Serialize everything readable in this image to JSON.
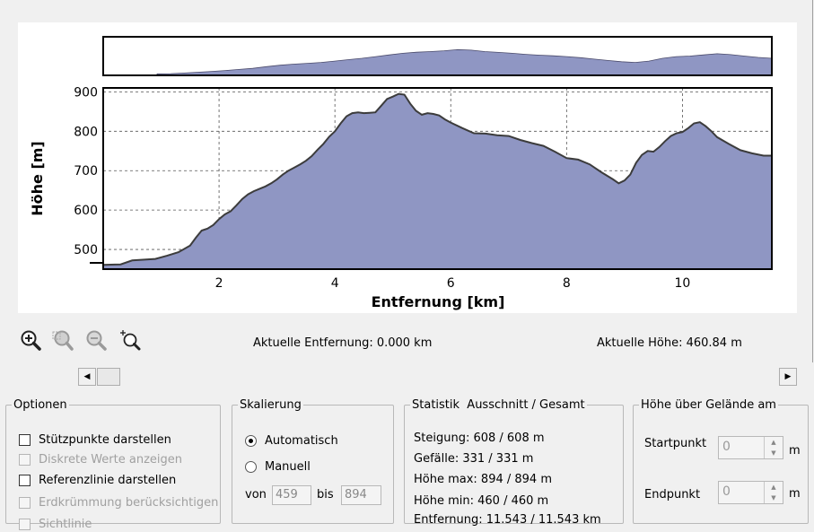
{
  "chart_data": {
    "type": "area",
    "xlabel": "Entfernung [km]",
    "ylabel": "Höhe [m]",
    "xlim": [
      0,
      11.543
    ],
    "ylim": [
      450,
      910
    ],
    "x_ticks": [
      "2",
      "4",
      "6",
      "8",
      "10"
    ],
    "y_ticks": [
      "500",
      "600",
      "700",
      "800",
      "900"
    ],
    "x_tick_values": [
      2,
      4,
      6,
      8,
      10
    ],
    "y_tick_values": [
      500,
      600,
      700,
      800,
      900
    ],
    "grid": true,
    "fill_color": "#8f96c3",
    "line_color": "#3c3c3c",
    "x": [
      0,
      0.3,
      0.5,
      0.9,
      1.1,
      1.3,
      1.5,
      1.6,
      1.7,
      1.8,
      1.9,
      2.0,
      2.1,
      2.2,
      2.3,
      2.4,
      2.5,
      2.6,
      2.7,
      2.8,
      2.9,
      3.0,
      3.1,
      3.2,
      3.3,
      3.4,
      3.5,
      3.6,
      3.7,
      3.8,
      3.9,
      4.0,
      4.1,
      4.2,
      4.3,
      4.4,
      4.5,
      4.6,
      4.7,
      4.8,
      4.9,
      5.0,
      5.1,
      5.2,
      5.3,
      5.4,
      5.5,
      5.6,
      5.7,
      5.8,
      5.9,
      6.0,
      6.2,
      6.4,
      6.6,
      6.8,
      7.0,
      7.2,
      7.4,
      7.6,
      7.8,
      8.0,
      8.2,
      8.4,
      8.6,
      8.8,
      8.9,
      9.0,
      9.1,
      9.2,
      9.3,
      9.4,
      9.5,
      9.6,
      9.7,
      9.8,
      9.9,
      10.0,
      10.1,
      10.2,
      10.3,
      10.4,
      10.5,
      10.6,
      10.8,
      11.0,
      11.2,
      11.4,
      11.543
    ],
    "y": [
      461,
      462,
      472,
      476,
      484,
      493,
      510,
      530,
      548,
      553,
      562,
      577,
      589,
      597,
      612,
      628,
      640,
      648,
      654,
      660,
      668,
      678,
      690,
      700,
      708,
      716,
      725,
      737,
      753,
      768,
      786,
      800,
      820,
      838,
      846,
      848,
      846,
      847,
      848,
      865,
      882,
      888,
      895,
      893,
      870,
      852,
      842,
      846,
      844,
      840,
      830,
      822,
      808,
      795,
      794,
      790,
      788,
      778,
      770,
      763,
      748,
      732,
      728,
      716,
      696,
      678,
      668,
      675,
      690,
      720,
      740,
      750,
      748,
      760,
      775,
      788,
      795,
      798,
      808,
      820,
      823,
      813,
      800,
      785,
      768,
      752,
      744,
      738,
      738
    ],
    "overview_y": [
      461,
      465,
      475,
      490,
      505,
      520,
      540,
      560,
      590,
      615,
      635,
      650,
      665,
      690,
      715,
      740,
      770,
      800,
      830,
      848,
      860,
      875,
      895,
      885,
      860,
      845,
      830,
      810,
      795,
      785,
      770,
      750,
      725,
      700,
      678,
      665,
      690,
      740,
      770,
      780,
      800,
      822,
      805,
      780,
      755,
      740
    ]
  },
  "toolbar": {
    "icons": [
      "zoom-in-icon",
      "zoom-region-icon",
      "zoom-out-icon",
      "zoom-reset-icon"
    ]
  },
  "status": {
    "distance": "Aktuelle Entfernung: 0.000 km",
    "height": "Aktuelle Höhe: 460.84 m"
  },
  "scrollbar": {
    "left_arrow": "◀",
    "right_arrow": "▶"
  },
  "options": {
    "title": "Optionen",
    "items": [
      {
        "label": "Stützpunkte darstellen",
        "enabled": true
      },
      {
        "label": "Diskrete Werte anzeigen",
        "enabled": false
      },
      {
        "label": "Referenzlinie darstellen",
        "enabled": true
      },
      {
        "label": "Erdkrümmung berücksichtigen",
        "enabled": false
      },
      {
        "label": "Sichtlinie",
        "enabled": false
      }
    ]
  },
  "scaling": {
    "title": "Skalierung",
    "auto_label": "Automatisch",
    "manual_label": "Manuell",
    "from_label": "von",
    "from_value": "459",
    "to_label": "bis",
    "to_value": "894",
    "selected": "Automatisch"
  },
  "stats": {
    "title": "Statistik  Ausschnitt / Gesamt",
    "rise": "Steigung: 608 / 608 m",
    "fall": "Gefälle: 331 / 331 m",
    "max": "Höhe max: 894 / 894 m",
    "min": "Höhe min: 460 / 460 m",
    "dist": "Entfernung: 11.543 / 11.543 km"
  },
  "terrain": {
    "title": "Höhe über Gelände am",
    "start_label": "Startpunkt",
    "start_value": "0",
    "end_label": "Endpunkt",
    "end_value": "0",
    "unit": "m",
    "spin_up": "▲",
    "spin_down": "▼"
  }
}
